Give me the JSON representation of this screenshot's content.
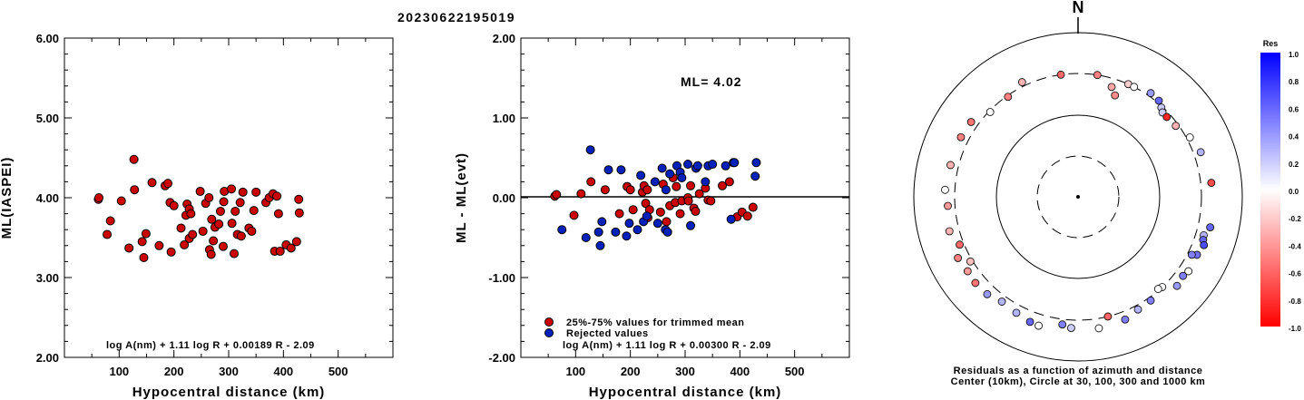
{
  "title": "20230622195019",
  "chart_data": [
    {
      "type": "scatter",
      "ylabel": "ML(IASPEI)",
      "xlabel": "Hypocentral distance (km)",
      "xlim": [
        0,
        600
      ],
      "ylim": [
        2.0,
        6.0
      ],
      "xticks": [
        "100",
        "200",
        "300",
        "400",
        "500"
      ],
      "yticks": [
        "2.00",
        "3.00",
        "4.00",
        "5.00",
        "6.00"
      ],
      "formula": "log A(nm) + 1.11 log R + 0.00189 R - 2.09",
      "color": "#cc0000",
      "points": [
        [
          62,
          3.98
        ],
        [
          63,
          4.0
        ],
        [
          78,
          3.54
        ],
        [
          84,
          3.71
        ],
        [
          104,
          3.96
        ],
        [
          118,
          3.37
        ],
        [
          127,
          4.48
        ],
        [
          128,
          4.1
        ],
        [
          142,
          3.45
        ],
        [
          145,
          3.25
        ],
        [
          149,
          3.55
        ],
        [
          160,
          4.19
        ],
        [
          173,
          3.4
        ],
        [
          184,
          4.15
        ],
        [
          189,
          4.18
        ],
        [
          193,
          3.94
        ],
        [
          195,
          3.32
        ],
        [
          200,
          3.9
        ],
        [
          213,
          3.62
        ],
        [
          219,
          3.41
        ],
        [
          222,
          3.78
        ],
        [
          224,
          3.92
        ],
        [
          228,
          3.86
        ],
        [
          228,
          3.49
        ],
        [
          231,
          3.8
        ],
        [
          234,
          3.54
        ],
        [
          248,
          4.08
        ],
        [
          253,
          3.58
        ],
        [
          258,
          3.93
        ],
        [
          264,
          4.0
        ],
        [
          265,
          3.35
        ],
        [
          268,
          3.29
        ],
        [
          269,
          3.73
        ],
        [
          272,
          3.46
        ],
        [
          275,
          3.63
        ],
        [
          282,
          3.67
        ],
        [
          285,
          3.83
        ],
        [
          290,
          3.39
        ],
        [
          291,
          3.95
        ],
        [
          292,
          4.08
        ],
        [
          305,
          4.11
        ],
        [
          306,
          3.68
        ],
        [
          310,
          3.3
        ],
        [
          312,
          3.83
        ],
        [
          316,
          3.54
        ],
        [
          321,
          3.94
        ],
        [
          323,
          3.52
        ],
        [
          326,
          4.07
        ],
        [
          337,
          3.62
        ],
        [
          342,
          3.58
        ],
        [
          346,
          3.84
        ],
        [
          350,
          4.07
        ],
        [
          368,
          3.94
        ],
        [
          374,
          4.0
        ],
        [
          381,
          4.05
        ],
        [
          384,
          3.33
        ],
        [
          388,
          4.02
        ],
        [
          391,
          3.8
        ],
        [
          394,
          3.33
        ],
        [
          405,
          3.41
        ],
        [
          414,
          3.37
        ],
        [
          424,
          3.45
        ],
        [
          428,
          3.98
        ],
        [
          429,
          3.81
        ]
      ]
    },
    {
      "type": "scatter",
      "ylabel": "ML - ML(evt)",
      "xlabel": "Hypocentral distance (km)",
      "xlim": [
        0,
        600
      ],
      "ylim": [
        -2.0,
        2.0
      ],
      "xticks": [
        "100",
        "200",
        "300",
        "400",
        "500"
      ],
      "yticks": [
        "-2.00",
        "-1.00",
        "0.00",
        "1.00",
        "2.00"
      ],
      "annotation": "ML= 4.02",
      "formula": "log A(nm) + 1.11 log R + 0.00300 R - 2.09",
      "legend": [
        "25%-75% values for trimmed mean",
        "Rejected values"
      ],
      "series": [
        {
          "name": "25%-75% values for trimmed mean",
          "color": "#cc0000",
          "points": [
            [
              62,
              0.02
            ],
            [
              65,
              0.04
            ],
            [
              97,
              -0.22
            ],
            [
              110,
              0.05
            ],
            [
              128,
              0.2
            ],
            [
              154,
              0.1
            ],
            [
              180,
              -0.2
            ],
            [
              194,
              0.14
            ],
            [
              200,
              0.1
            ],
            [
              205,
              -0.15
            ],
            [
              222,
              0.07
            ],
            [
              225,
              0.15
            ],
            [
              228,
              -0.07
            ],
            [
              231,
              0.1
            ],
            [
              232,
              -0.25
            ],
            [
              235,
              -0.15
            ],
            [
              255,
              -0.18
            ],
            [
              260,
              0.17
            ],
            [
              266,
              -0.3
            ],
            [
              272,
              -0.1
            ],
            [
              278,
              0.25
            ],
            [
              282,
              -0.06
            ],
            [
              284,
              0.14
            ],
            [
              291,
              -0.2
            ],
            [
              294,
              -0.04
            ],
            [
              305,
              0.0
            ],
            [
              306,
              -0.04
            ],
            [
              310,
              0.15
            ],
            [
              316,
              -0.13
            ],
            [
              319,
              -0.17
            ],
            [
              326,
              0.05
            ],
            [
              337,
              0.12
            ],
            [
              342,
              -0.03
            ],
            [
              347,
              -0.04
            ],
            [
              368,
              0.15
            ],
            [
              381,
              0.2
            ],
            [
              395,
              -0.24
            ],
            [
              404,
              -0.18
            ],
            [
              414,
              -0.23
            ],
            [
              424,
              -0.12
            ]
          ]
        },
        {
          "name": "Rejected values",
          "color": "#0022bb",
          "points": [
            [
              75,
              -0.4
            ],
            [
              119,
              -0.5
            ],
            [
              127,
              0.6
            ],
            [
              142,
              -0.43
            ],
            [
              145,
              -0.6
            ],
            [
              148,
              -0.3
            ],
            [
              160,
              0.35
            ],
            [
              173,
              -0.43
            ],
            [
              183,
              0.35
            ],
            [
              193,
              -0.48
            ],
            [
              198,
              -0.32
            ],
            [
              213,
              -0.4
            ],
            [
              219,
              0.28
            ],
            [
              224,
              -0.3
            ],
            [
              230,
              -0.23
            ],
            [
              245,
              0.2
            ],
            [
              250,
              -0.32
            ],
            [
              258,
              0.37
            ],
            [
              264,
              -0.4
            ],
            [
              265,
              0.1
            ],
            [
              268,
              -0.43
            ],
            [
              272,
              0.3
            ],
            [
              285,
              0.4
            ],
            [
              291,
              0.32
            ],
            [
              294,
              0.25
            ],
            [
              305,
              0.42
            ],
            [
              310,
              -0.35
            ],
            [
              320,
              0.37
            ],
            [
              323,
              0.4
            ],
            [
              337,
              0.2
            ],
            [
              342,
              0.4
            ],
            [
              350,
              0.42
            ],
            [
              374,
              0.4
            ],
            [
              384,
              -0.27
            ],
            [
              388,
              0.44
            ],
            [
              390,
              0.44
            ],
            [
              428,
              0.27
            ],
            [
              430,
              0.44
            ]
          ]
        }
      ]
    }
  ],
  "polar": {
    "north": "N",
    "caption1": "Residuals as a function of azimuth and distance",
    "caption2": "Center (10km), Circle at 30, 100, 300 and 1000 km",
    "colorbar_title": "Res",
    "colorbar_ticks": [
      "1.0",
      "0.8",
      "0.6",
      "0.4",
      "0.2",
      "0.0",
      "-0.2",
      "-0.4",
      "-0.6",
      "-0.8",
      "-1.0"
    ],
    "stations": [
      {
        "az": -8,
        "d": 300,
        "r": -0.6
      },
      {
        "az": 9,
        "d": 300,
        "r": -0.5
      },
      {
        "az": 17,
        "d": 240,
        "r": -0.35
      },
      {
        "az": 20,
        "d": 200,
        "r": -0.45
      },
      {
        "az": 24,
        "d": 300,
        "r": -0.2
      },
      {
        "az": 27,
        "d": 300,
        "r": 0.0
      },
      {
        "az": 35,
        "d": 330,
        "r": 0.4
      },
      {
        "az": 40,
        "d": 320,
        "r": 0.6
      },
      {
        "az": 43,
        "d": 290,
        "r": 0.2
      },
      {
        "az": 45,
        "d": 270,
        "r": 0.2
      },
      {
        "az": 48,
        "d": 270,
        "r": -0.85
      },
      {
        "az": 54,
        "d": 280,
        "r": -0.3
      },
      {
        "az": 62,
        "d": 330,
        "r": 0.0
      },
      {
        "az": 70,
        "d": 370,
        "r": 0.3
      },
      {
        "az": 84,
        "d": 410,
        "r": -0.7
      },
      {
        "az": 103,
        "d": 430,
        "r": 0.6
      },
      {
        "az": 107,
        "d": 380,
        "r": 0.3
      },
      {
        "az": 109,
        "d": 390,
        "r": 0.6
      },
      {
        "az": 111,
        "d": 420,
        "r": 0.7
      },
      {
        "az": 116,
        "d": 390,
        "r": 0.55
      },
      {
        "az": 117,
        "d": 340,
        "r": 0.5
      },
      {
        "az": 124,
        "d": 400,
        "r": 0.0
      },
      {
        "az": 127,
        "d": 380,
        "r": 0.5
      },
      {
        "az": 132,
        "d": 400,
        "r": 0.4
      },
      {
        "az": 137,
        "d": 300,
        "r": 0.0
      },
      {
        "az": 139,
        "d": 290,
        "r": 0.0
      },
      {
        "az": 145,
        "d": 330,
        "r": 0.5
      },
      {
        "az": 152,
        "d": 340,
        "r": 0.3
      },
      {
        "az": 159,
        "d": 380,
        "r": 0.5
      },
      {
        "az": 166,
        "d": 300,
        "r": -0.6
      },
      {
        "az": 171,
        "d": 400,
        "r": 0.0
      },
      {
        "az": 183,
        "d": 380,
        "r": 0.2
      },
      {
        "az": 187,
        "d": 350,
        "r": 0.5
      },
      {
        "az": 197,
        "d": 420,
        "r": 0.0
      },
      {
        "az": 201,
        "d": 410,
        "r": 0.6
      },
      {
        "az": 208,
        "d": 380,
        "r": 0.3
      },
      {
        "az": 216,
        "d": 360,
        "r": 0.3
      },
      {
        "az": 223,
        "d": 400,
        "r": 0.4
      },
      {
        "az": 230,
        "d": 410,
        "r": -0.55
      },
      {
        "az": 236,
        "d": 400,
        "r": -0.4
      },
      {
        "az": 239,
        "d": 320,
        "r": -0.25
      },
      {
        "az": 243,
        "d": 420,
        "r": -0.5
      },
      {
        "az": 248,
        "d": 340,
        "r": -0.6
      },
      {
        "az": 255,
        "d": 400,
        "r": -0.3
      },
      {
        "az": 266,
        "d": 370,
        "r": -0.4
      },
      {
        "az": 273,
        "d": 400,
        "r": 0.0
      },
      {
        "az": 284,
        "d": 380,
        "r": -0.3
      },
      {
        "az": 297,
        "d": 380,
        "r": -0.5
      },
      {
        "az": 305,
        "d": 370,
        "r": -0.55
      },
      {
        "az": 314,
        "d": 290,
        "r": 0.0
      },
      {
        "az": 325,
        "d": 290,
        "r": -0.5
      },
      {
        "az": 334,
        "d": 340,
        "r": -0.3
      }
    ]
  }
}
